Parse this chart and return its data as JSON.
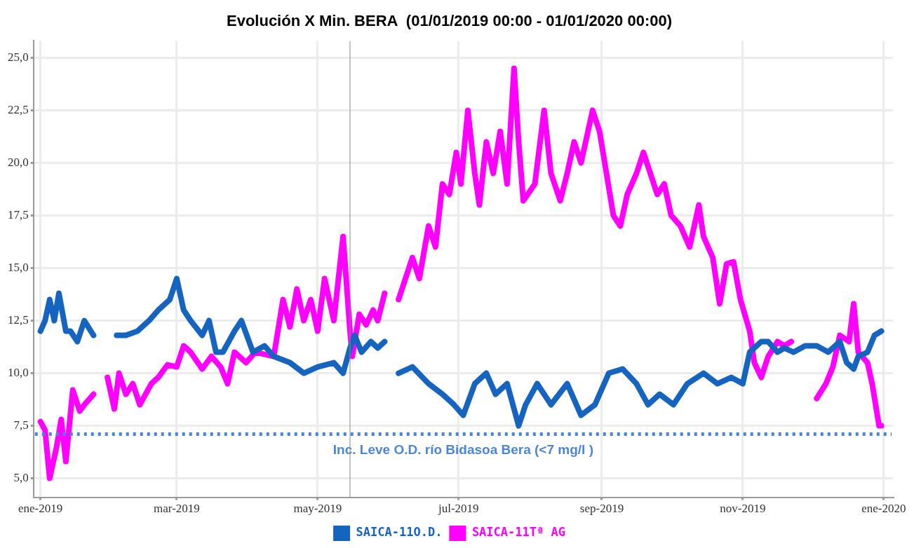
{
  "chart_data": {
    "type": "line",
    "title": "Evolución X Min. BERA  (01/01/2019 00:00 - 01/01/2020 00:00)",
    "xlim": [
      "2018-12-29",
      "2020-01-05"
    ],
    "xticks": [
      {
        "value": "2019-01-01",
        "label": "ene-2019"
      },
      {
        "value": "2019-03-01",
        "label": "mar-2019"
      },
      {
        "value": "2019-05-01",
        "label": "may-2019"
      },
      {
        "value": "2019-07-01",
        "label": "jul-2019"
      },
      {
        "value": "2019-09-01",
        "label": "sep-2019"
      },
      {
        "value": "2019-11-01",
        "label": "nov-2019"
      },
      {
        "value": "2020-01-01",
        "label": "ene-2020"
      }
    ],
    "ylim": [
      4.1,
      25.8
    ],
    "yticks": [
      {
        "value": 5,
        "label": "5,0"
      },
      {
        "value": 7.5,
        "label": "7,5"
      },
      {
        "value": 10,
        "label": "10,0"
      },
      {
        "value": 12.5,
        "label": "12,5"
      },
      {
        "value": 15,
        "label": "15,0"
      },
      {
        "value": 17.5,
        "label": "17,5"
      },
      {
        "value": 20,
        "label": "20,0"
      },
      {
        "value": 22.5,
        "label": "22,5"
      },
      {
        "value": 25,
        "label": "25,0"
      }
    ],
    "grid": true,
    "legend": "bottom",
    "marker": "none",
    "line_style": "solid",
    "ref_lines": [
      {
        "axis": "y",
        "value": 7.1,
        "label": "Inc. Leve O.D. río Bidasoa Bera (<7 mg/l )",
        "color": "#4a86d8",
        "line_style": "dotted"
      },
      {
        "axis": "x",
        "value": "2019-05-15",
        "color": "#888888",
        "line_style": "solid"
      }
    ],
    "series": [
      {
        "name": "SAICA-11O.D.",
        "color": "#1565c0",
        "x": [
          "2019-01-01",
          "2019-01-03",
          "2019-01-05",
          "2019-01-07",
          "2019-01-09",
          "2019-01-12",
          "2019-01-14",
          "2019-01-17",
          "2019-01-20",
          "2019-01-24",
          "2019-01-28",
          "2019-02-03",
          "2019-02-07",
          "2019-02-12",
          "2019-02-17",
          "2019-02-21",
          "2019-02-26",
          "2019-03-01",
          "2019-03-04",
          "2019-03-07",
          "2019-03-12",
          "2019-03-15",
          "2019-03-18",
          "2019-03-21",
          "2019-03-26",
          "2019-03-29",
          "2019-04-03",
          "2019-04-08",
          "2019-04-12",
          "2019-04-19",
          "2019-04-25",
          "2019-05-01",
          "2019-05-08",
          "2019-05-12",
          "2019-05-15",
          "2019-05-17",
          "2019-05-20",
          "2019-05-24",
          "2019-05-27",
          "2019-05-30",
          "2019-06-02",
          "2019-06-05",
          "2019-06-11",
          "2019-06-18",
          "2019-06-24",
          "2019-06-29",
          "2019-07-03",
          "2019-07-08",
          "2019-07-13",
          "2019-07-17",
          "2019-07-22",
          "2019-07-27",
          "2019-07-30",
          "2019-08-04",
          "2019-08-10",
          "2019-08-17",
          "2019-08-23",
          "2019-08-29",
          "2019-09-04",
          "2019-09-10",
          "2019-09-16",
          "2019-09-21",
          "2019-09-26",
          "2019-10-02",
          "2019-10-08",
          "2019-10-15",
          "2019-10-21",
          "2019-10-27",
          "2019-11-01",
          "2019-11-04",
          "2019-11-09",
          "2019-11-12",
          "2019-11-16",
          "2019-11-19",
          "2019-11-23",
          "2019-11-28",
          "2019-12-03",
          "2019-12-08",
          "2019-12-13",
          "2019-12-16",
          "2019-12-19",
          "2019-12-21",
          "2019-12-25",
          "2019-12-28",
          "2019-12-31"
        ],
        "values": [
          12.0,
          12.5,
          13.5,
          12.5,
          13.8,
          12.0,
          12.0,
          11.5,
          12.5,
          11.8,
          null,
          11.8,
          11.8,
          12.0,
          12.5,
          13.0,
          13.5,
          14.5,
          13.0,
          12.5,
          11.8,
          12.5,
          11.0,
          11.0,
          12.0,
          12.5,
          11.0,
          11.3,
          10.8,
          10.5,
          10.0,
          10.3,
          10.5,
          10.0,
          11.2,
          11.8,
          11.0,
          11.5,
          11.2,
          11.5,
          null,
          10.0,
          10.3,
          9.5,
          9.0,
          8.5,
          8.0,
          9.5,
          10.0,
          9.0,
          9.5,
          7.5,
          8.5,
          9.5,
          8.5,
          9.5,
          8.0,
          8.5,
          10.0,
          10.2,
          9.5,
          8.5,
          9.0,
          8.5,
          9.5,
          10.0,
          9.5,
          9.8,
          9.5,
          11.0,
          11.5,
          11.5,
          11.0,
          11.2,
          11.0,
          11.3,
          11.3,
          11.0,
          11.5,
          10.5,
          10.2,
          10.8,
          11.0,
          11.8,
          12.0
        ]
      },
      {
        "name": "SAICA-11Tª AG",
        "color": "#ff00ff",
        "x": [
          "2019-01-01",
          "2019-01-03",
          "2019-01-05",
          "2019-01-08",
          "2019-01-10",
          "2019-01-12",
          "2019-01-15",
          "2019-01-18",
          "2019-01-20",
          "2019-01-24",
          "2019-01-27",
          "2019-01-30",
          "2019-02-02",
          "2019-02-04",
          "2019-02-07",
          "2019-02-10",
          "2019-02-13",
          "2019-02-18",
          "2019-02-21",
          "2019-02-25",
          "2019-03-01",
          "2019-03-04",
          "2019-03-07",
          "2019-03-12",
          "2019-03-16",
          "2019-03-20",
          "2019-03-23",
          "2019-03-26",
          "2019-03-31",
          "2019-04-04",
          "2019-04-12",
          "2019-04-16",
          "2019-04-19",
          "2019-04-22",
          "2019-04-25",
          "2019-04-28",
          "2019-05-01",
          "2019-05-04",
          "2019-05-08",
          "2019-05-12",
          "2019-05-15",
          "2019-05-16",
          "2019-05-19",
          "2019-05-22",
          "2019-05-25",
          "2019-05-27",
          "2019-05-30",
          "2019-06-02",
          "2019-06-05",
          "2019-06-08",
          "2019-06-11",
          "2019-06-14",
          "2019-06-18",
          "2019-06-21",
          "2019-06-24",
          "2019-06-27",
          "2019-06-30",
          "2019-07-02",
          "2019-07-05",
          "2019-07-08",
          "2019-07-10",
          "2019-07-13",
          "2019-07-16",
          "2019-07-19",
          "2019-07-22",
          "2019-07-25",
          "2019-07-27",
          "2019-07-29",
          "2019-08-03",
          "2019-08-07",
          "2019-08-10",
          "2019-08-14",
          "2019-08-17",
          "2019-08-20",
          "2019-08-23",
          "2019-08-28",
          "2019-08-31",
          "2019-09-03",
          "2019-09-06",
          "2019-09-09",
          "2019-09-12",
          "2019-09-16",
          "2019-09-19",
          "2019-09-22",
          "2019-09-25",
          "2019-09-28",
          "2019-10-01",
          "2019-10-05",
          "2019-10-09",
          "2019-10-13",
          "2019-10-15",
          "2019-10-19",
          "2019-10-22",
          "2019-10-25",
          "2019-10-28",
          "2019-10-31",
          "2019-11-04",
          "2019-11-06",
          "2019-11-09",
          "2019-11-12",
          "2019-11-16",
          "2019-11-19",
          "2019-11-22",
          "2019-11-28",
          "2019-12-03",
          "2019-12-07",
          "2019-12-10",
          "2019-12-13",
          "2019-12-17",
          "2019-12-19",
          "2019-12-21",
          "2019-12-25",
          "2019-12-27",
          "2019-12-30",
          "2019-12-31"
        ],
        "values": [
          7.7,
          7.3,
          5.0,
          6.5,
          7.8,
          5.8,
          9.2,
          8.2,
          8.5,
          9.0,
          null,
          9.8,
          8.3,
          10.0,
          9.0,
          9.5,
          8.5,
          9.5,
          9.8,
          10.4,
          10.3,
          11.3,
          11.0,
          10.2,
          10.8,
          10.3,
          9.5,
          11.0,
          10.5,
          11.0,
          10.8,
          13.5,
          12.2,
          14.0,
          12.5,
          13.5,
          12.0,
          14.5,
          12.5,
          16.5,
          12.0,
          10.8,
          12.8,
          12.3,
          13.0,
          12.5,
          13.8,
          null,
          13.5,
          14.5,
          15.5,
          14.5,
          17.0,
          16.0,
          19.0,
          18.5,
          20.5,
          19.0,
          22.5,
          19.5,
          18.0,
          21.0,
          19.5,
          21.5,
          19.0,
          24.5,
          21.0,
          18.2,
          19.0,
          22.5,
          19.5,
          18.2,
          19.5,
          21.0,
          20.0,
          22.5,
          21.5,
          19.5,
          17.5,
          17.0,
          18.5,
          19.5,
          20.5,
          19.5,
          18.5,
          19.0,
          17.5,
          17.0,
          16.0,
          18.0,
          16.5,
          15.5,
          13.3,
          15.2,
          15.3,
          13.5,
          12.0,
          10.5,
          9.8,
          10.8,
          11.5,
          11.3,
          11.5,
          null,
          8.8,
          9.5,
          10.3,
          11.8,
          11.5,
          13.3,
          11.0,
          10.5,
          9.5,
          7.5,
          7.5
        ]
      }
    ]
  }
}
